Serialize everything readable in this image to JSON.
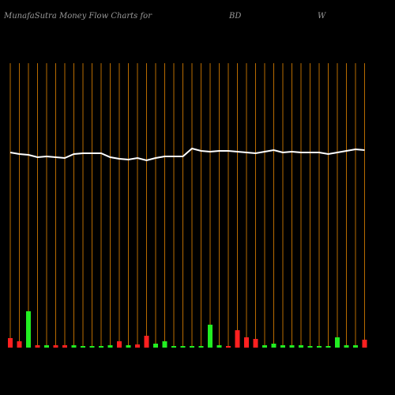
{
  "chart_data": {
    "type": "moneyflow",
    "title_parts": [
      "MunafaSutra  Money Flow  Charts for",
      "BD",
      "W"
    ],
    "categories": [
      null,
      null,
      null,
      null,
      null,
      null,
      null,
      null,
      null,
      null,
      null,
      null,
      null,
      null,
      null,
      null,
      null,
      null,
      null,
      null,
      null,
      null,
      null,
      null,
      null,
      null,
      null,
      null,
      null,
      null,
      null,
      null,
      null,
      null,
      null,
      null,
      null,
      null,
      null,
      null
    ],
    "line": {
      "color": "#ffffff",
      "values": [
        247,
        245,
        244,
        241,
        242,
        241,
        240,
        245,
        246,
        246,
        246,
        241,
        239,
        238,
        240,
        237,
        240,
        242,
        242,
        242,
        252,
        249,
        248,
        249,
        249,
        248,
        247,
        246,
        248,
        250,
        247,
        248,
        247,
        247,
        247,
        245,
        247,
        249,
        251,
        250
      ]
    },
    "bars": {
      "values": [
        12,
        8,
        46,
        3,
        3,
        3,
        3,
        3,
        2,
        2,
        2,
        3,
        8,
        3,
        4,
        15,
        5,
        8,
        2,
        2,
        2,
        2,
        29,
        3,
        2,
        22,
        13,
        11,
        3,
        5,
        3,
        3,
        3,
        2,
        2,
        2,
        13,
        3,
        3,
        10
      ],
      "colors": [
        "#ff2020",
        "#ff2020",
        "#22ee22",
        "#ff2020",
        "#22ee22",
        "#ff2020",
        "#ff2020",
        "#22ee22",
        "#22ee22",
        "#22ee22",
        "#22ee22",
        "#22ee22",
        "#ff2020",
        "#22ee22",
        "#ff2020",
        "#ff2020",
        "#22ee22",
        "#22ee22",
        "#22ee22",
        "#22ee22",
        "#22ee22",
        "#22ee22",
        "#22ee22",
        "#22ee22",
        "#ff2020",
        "#ff2020",
        "#ff2020",
        "#ff2020",
        "#22ee22",
        "#22ee22",
        "#22ee22",
        "#22ee22",
        "#22ee22",
        "#22ee22",
        "#22ee22",
        "#22ee22",
        "#22ee22",
        "#22ee22",
        "#22ee22",
        "#ff2020"
      ]
    },
    "ylim": [
      0,
      360
    ],
    "grid_color": "#b86b00"
  }
}
